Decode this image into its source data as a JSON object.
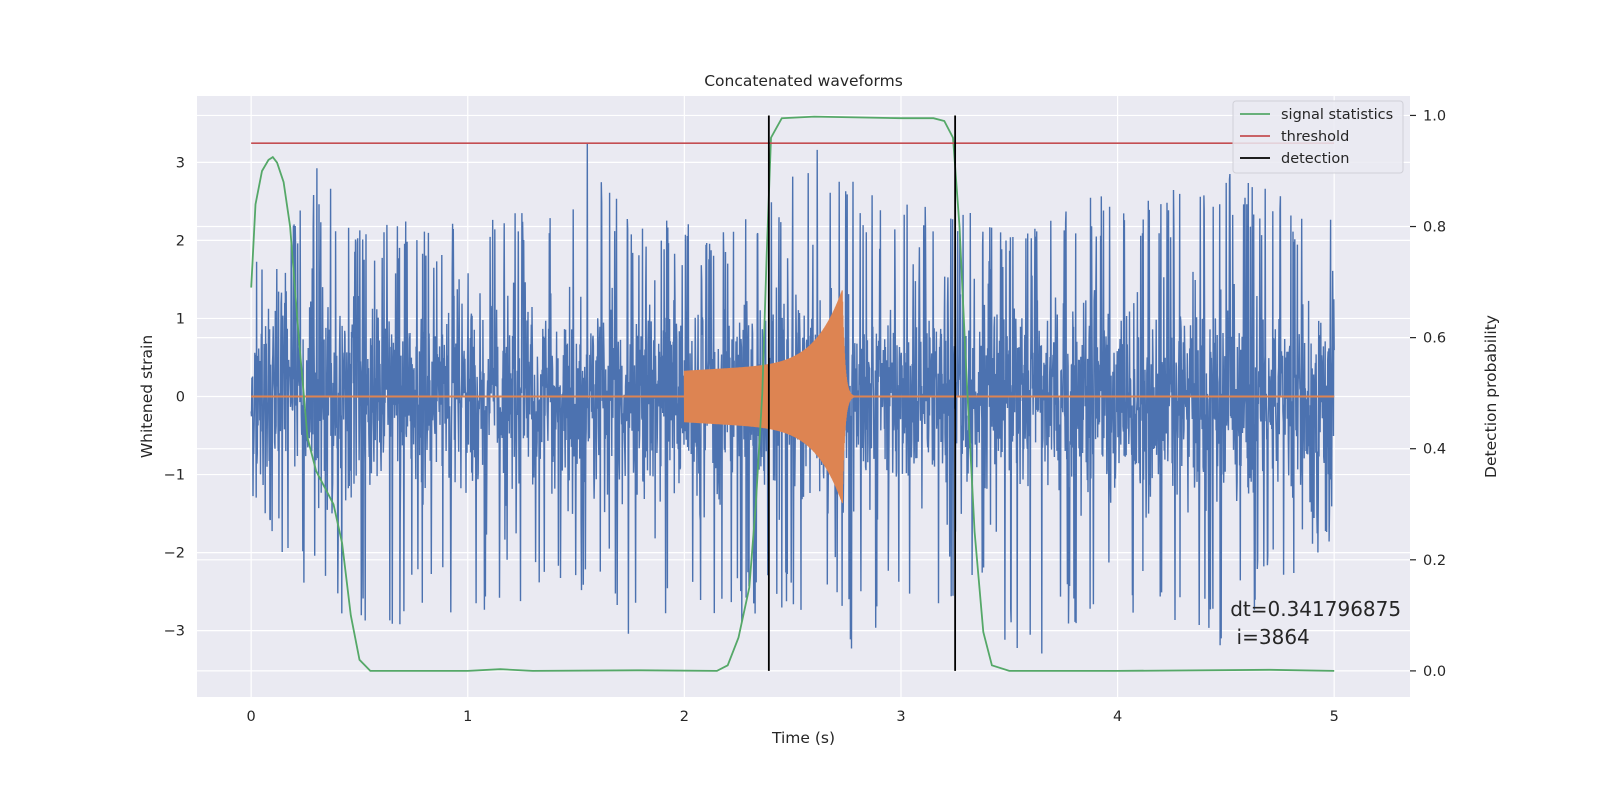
{
  "chart_data": {
    "type": "line",
    "title": "Concatenated waveforms",
    "xlabel": "Time (s)",
    "ylabel": "Whitened strain",
    "ylabel_right": "Detection probability",
    "xlim": [
      -0.25,
      5.35
    ],
    "ylim": [
      -3.85,
      3.85
    ],
    "ylim_right": [
      -0.047,
      1.035
    ],
    "x_ticks": [
      0,
      1,
      2,
      3,
      4,
      5
    ],
    "y_ticks": [
      -3,
      -2,
      -1,
      0,
      1,
      2,
      3
    ],
    "y_ticks_right": [
      0.0,
      0.2,
      0.4,
      0.6,
      0.8,
      1.0
    ],
    "x_tick_labels": [
      "0",
      "1",
      "2",
      "3",
      "4",
      "5"
    ],
    "y_tick_labels": [
      "−3",
      "−2",
      "−1",
      "0",
      "1",
      "2",
      "3"
    ],
    "y_tick_labels_right": [
      "0.0",
      "0.2",
      "0.4",
      "0.6",
      "0.8",
      "1.0"
    ],
    "grid": true,
    "legend_position": "top-right",
    "colors": {
      "background": "#eaeaf2",
      "grid": "#ffffff",
      "strain": "#4c72b0",
      "template": "#dd8452",
      "statistic": "#55a868",
      "threshold": "#c44e52",
      "detection": "#000000"
    },
    "series": [
      {
        "role": "strain",
        "axis": "left",
        "description_x": [
          0,
          5
        ],
        "noise_envelope": [
          [
            0.0,
            1.6
          ],
          [
            0.03,
            2.2
          ],
          [
            0.1,
            1.5
          ],
          [
            0.3,
            3.0
          ],
          [
            0.5,
            2.2
          ],
          [
            0.8,
            2.3
          ],
          [
            1.1,
            2.5
          ],
          [
            1.4,
            2.4
          ],
          [
            1.58,
            3.45
          ],
          [
            1.7,
            2.5
          ],
          [
            2.0,
            2.2
          ],
          [
            2.3,
            2.3
          ],
          [
            2.5,
            3.0
          ],
          [
            2.73,
            3.45
          ],
          [
            2.9,
            2.4
          ],
          [
            3.2,
            2.6
          ],
          [
            3.45,
            2.1
          ],
          [
            3.8,
            2.6
          ],
          [
            4.2,
            2.6
          ],
          [
            4.52,
            3.0
          ],
          [
            4.8,
            2.5
          ],
          [
            5.0,
            2.3
          ]
        ],
        "noise_min_envelope": [
          [
            0.0,
            -1.5
          ],
          [
            0.2,
            -2.3
          ],
          [
            0.4,
            -2.8
          ],
          [
            0.6,
            -3.1
          ],
          [
            0.8,
            -2.9
          ],
          [
            1.0,
            -2.8
          ],
          [
            1.4,
            -2.6
          ],
          [
            1.7,
            -3.1
          ],
          [
            2.0,
            -2.8
          ],
          [
            2.3,
            -2.9
          ],
          [
            2.5,
            -2.7
          ],
          [
            2.78,
            -3.4
          ],
          [
            3.0,
            -2.8
          ],
          [
            3.3,
            -2.7
          ],
          [
            3.63,
            -3.5
          ],
          [
            3.9,
            -2.7
          ],
          [
            4.2,
            -2.9
          ],
          [
            4.45,
            -3.3
          ],
          [
            4.7,
            -2.6
          ],
          [
            5.0,
            -1.8
          ]
        ]
      },
      {
        "role": "template",
        "axis": "left",
        "start": 2.0,
        "merger": 2.73,
        "start_amplitude": 0.33,
        "peak_amplitude": 1.25
      },
      {
        "name": "signal statistics",
        "axis": "right",
        "x": [
          0.0,
          0.02,
          0.05,
          0.08,
          0.1,
          0.12,
          0.15,
          0.18,
          0.22,
          0.26,
          0.3,
          0.34,
          0.38,
          0.42,
          0.46,
          0.5,
          0.55,
          0.7,
          1.0,
          1.15,
          1.3,
          1.8,
          2.15,
          2.2,
          2.25,
          2.3,
          2.33,
          2.36,
          2.38,
          2.4,
          2.45,
          2.6,
          3.0,
          3.15,
          3.2,
          3.24,
          3.27,
          3.3,
          3.34,
          3.38,
          3.42,
          3.5,
          4.0,
          4.7,
          5.0
        ],
        "y": [
          0.69,
          0.84,
          0.9,
          0.92,
          0.925,
          0.915,
          0.88,
          0.8,
          0.6,
          0.42,
          0.36,
          0.33,
          0.3,
          0.23,
          0.1,
          0.02,
          0.0,
          0.0,
          0.0,
          0.003,
          0.0,
          0.001,
          0.0,
          0.01,
          0.06,
          0.15,
          0.3,
          0.5,
          0.75,
          0.96,
          0.995,
          0.998,
          0.995,
          0.995,
          0.99,
          0.96,
          0.8,
          0.55,
          0.25,
          0.07,
          0.01,
          0.0,
          0.0,
          0.002,
          0.0
        ]
      },
      {
        "name": "threshold",
        "axis": "right",
        "x": [
          0,
          5
        ],
        "y": [
          0.95,
          0.95
        ]
      },
      {
        "name": "detection",
        "axis": "right",
        "vertical_lines_x": [
          2.39,
          3.25
        ],
        "y_range": [
          0.0,
          1.0
        ]
      }
    ],
    "annotation": {
      "line1": "dt=0.341796875",
      "line2": " i=3864",
      "x": 4.52,
      "y": -2.72
    }
  }
}
